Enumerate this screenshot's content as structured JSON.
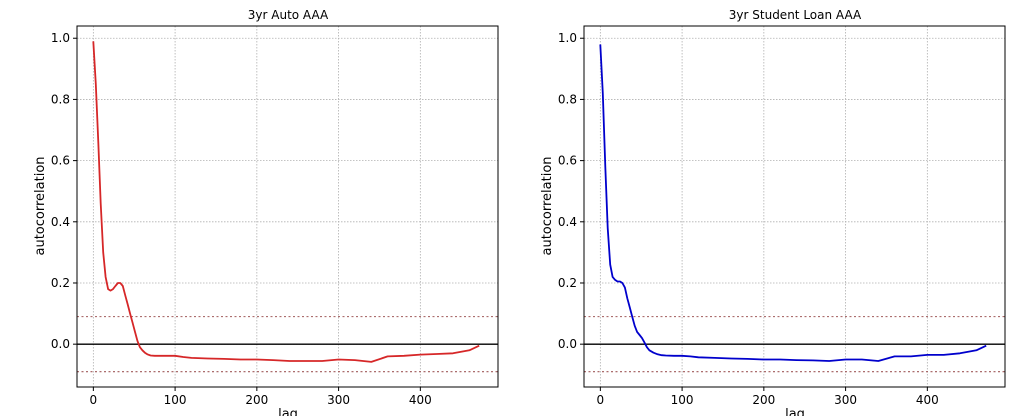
{
  "chart_data": [
    {
      "type": "line",
      "title": "3yr Auto AAA",
      "xlabel": "lag",
      "ylabel": "autocorrelation",
      "xlim": [
        -20,
        495
      ],
      "ylim": [
        -0.14,
        1.04
      ],
      "grid": true,
      "x_ticks": [
        0,
        100,
        200,
        300,
        400
      ],
      "y_ticks": [
        0.0,
        0.2,
        0.4,
        0.6,
        0.8,
        1.0
      ],
      "x_tick_labels": [
        "0",
        "100",
        "200",
        "300",
        "400"
      ],
      "y_tick_labels": [
        "0.0",
        "0.2",
        "0.4",
        "0.6",
        "0.8",
        "1.0"
      ],
      "confidence_bands": [
        0.09,
        -0.09
      ],
      "zero_line": 0.0,
      "line_color": "#d62728",
      "series": [
        {
          "x": [
            0,
            3,
            6,
            9,
            12,
            15,
            18,
            21,
            24,
            27,
            30,
            33,
            36,
            39,
            42,
            45,
            48,
            51,
            54,
            57,
            60,
            63,
            66,
            70,
            75,
            80,
            90,
            100,
            110,
            120,
            140,
            160,
            180,
            200,
            220,
            240,
            260,
            280,
            300,
            320,
            340,
            360,
            380,
            400,
            420,
            440,
            460,
            472
          ],
          "y": [
            0.99,
            0.85,
            0.66,
            0.46,
            0.3,
            0.22,
            0.18,
            0.175,
            0.18,
            0.19,
            0.2,
            0.2,
            0.19,
            0.16,
            0.13,
            0.1,
            0.07,
            0.04,
            0.01,
            -0.01,
            -0.02,
            -0.028,
            -0.033,
            -0.037,
            -0.038,
            -0.038,
            -0.038,
            -0.038,
            -0.042,
            -0.045,
            -0.047,
            -0.048,
            -0.05,
            -0.05,
            -0.052,
            -0.055,
            -0.055,
            -0.055,
            -0.05,
            -0.052,
            -0.058,
            -0.04,
            -0.038,
            -0.034,
            -0.032,
            -0.03,
            -0.02,
            -0.005
          ]
        }
      ]
    },
    {
      "type": "line",
      "title": "3yr Student Loan AAA",
      "xlabel": "lag",
      "ylabel": "autocorrelation",
      "xlim": [
        -20,
        495
      ],
      "ylim": [
        -0.14,
        1.04
      ],
      "grid": true,
      "x_ticks": [
        0,
        100,
        200,
        300,
        400
      ],
      "y_ticks": [
        0.0,
        0.2,
        0.4,
        0.6,
        0.8,
        1.0
      ],
      "x_tick_labels": [
        "0",
        "100",
        "200",
        "300",
        "400"
      ],
      "y_tick_labels": [
        "0.0",
        "0.2",
        "0.4",
        "0.6",
        "0.8",
        "1.0"
      ],
      "confidence_bands": [
        0.09,
        -0.09
      ],
      "zero_line": 0.0,
      "line_color": "#0000cc",
      "series": [
        {
          "x": [
            0,
            3,
            6,
            9,
            12,
            15,
            18,
            21,
            24,
            27,
            30,
            33,
            36,
            39,
            42,
            45,
            48,
            51,
            54,
            57,
            60,
            65,
            70,
            75,
            80,
            90,
            100,
            110,
            120,
            140,
            160,
            180,
            200,
            220,
            240,
            260,
            280,
            300,
            320,
            340,
            360,
            380,
            400,
            420,
            440,
            460,
            472
          ],
          "y": [
            0.98,
            0.82,
            0.58,
            0.38,
            0.26,
            0.22,
            0.21,
            0.205,
            0.205,
            0.2,
            0.185,
            0.15,
            0.12,
            0.09,
            0.06,
            0.04,
            0.03,
            0.02,
            0.005,
            -0.01,
            -0.02,
            -0.028,
            -0.033,
            -0.036,
            -0.037,
            -0.038,
            -0.038,
            -0.04,
            -0.043,
            -0.045,
            -0.047,
            -0.048,
            -0.05,
            -0.05,
            -0.052,
            -0.053,
            -0.055,
            -0.05,
            -0.05,
            -0.055,
            -0.04,
            -0.04,
            -0.035,
            -0.035,
            -0.03,
            -0.02,
            -0.005
          ]
        }
      ]
    }
  ]
}
